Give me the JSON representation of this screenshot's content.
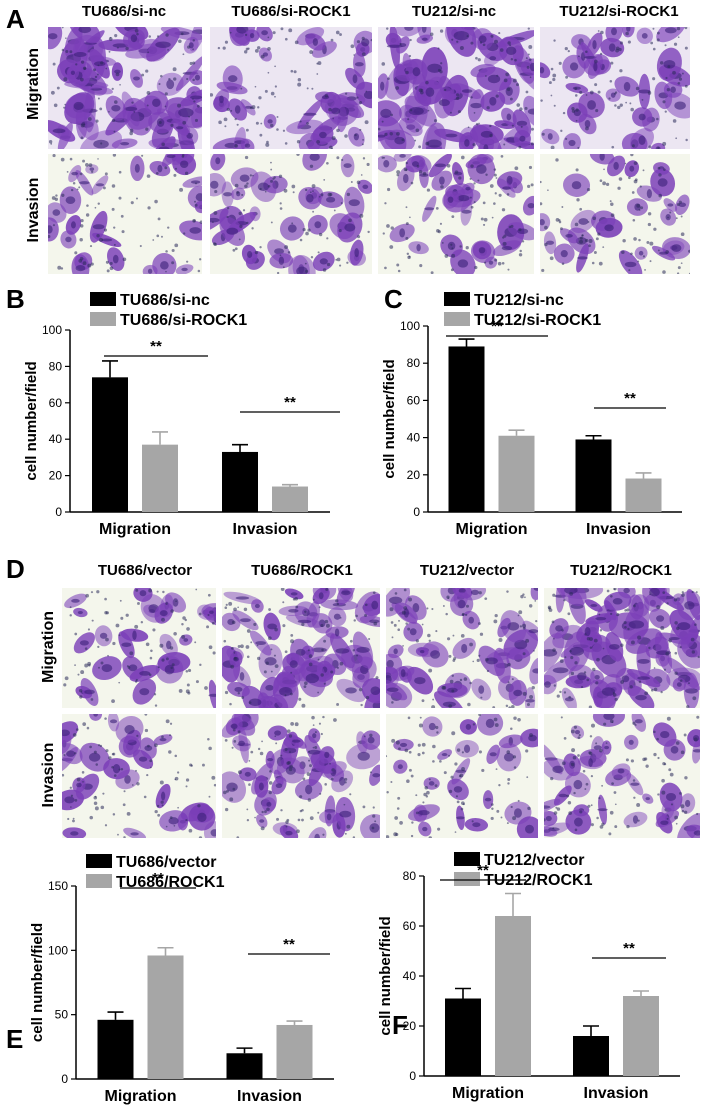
{
  "panels": {
    "A": {
      "letter": "A",
      "columns": [
        "TU686/si-nc",
        "TU686/si-ROCK1",
        "TU212/si-nc",
        "TU212/si-ROCK1"
      ],
      "rows": [
        "Migration",
        "Invasion"
      ],
      "density": [
        [
          1.0,
          0.55,
          1.0,
          0.45
        ],
        [
          0.35,
          0.45,
          0.45,
          0.3
        ]
      ]
    },
    "D": {
      "letter": "D",
      "columns": [
        "TU686/vector",
        "TU686/ROCK1",
        "TU212/vector",
        "TU212/ROCK1"
      ],
      "rows": [
        "Migration",
        "Invasion"
      ],
      "density": [
        [
          0.35,
          0.9,
          0.6,
          1.0
        ],
        [
          0.35,
          0.65,
          0.25,
          0.5
        ]
      ]
    },
    "B": {
      "letter": "B"
    },
    "C": {
      "letter": "C"
    },
    "E": {
      "letter": "E"
    },
    "F": {
      "letter": "F"
    }
  },
  "colors": {
    "stain": "#7b3fb8",
    "stain_dark": "#3a1f78",
    "bar_dark": "#000000",
    "bar_light": "#a6a6a6"
  },
  "chart_data": [
    {
      "id": "B",
      "type": "bar",
      "ylabel": "cell number/field",
      "ylim": [
        0,
        100
      ],
      "yticks": [
        0,
        20,
        40,
        60,
        80,
        100
      ],
      "categories": [
        "Migration",
        "Invasion"
      ],
      "series": [
        {
          "name": "TU686/si-nc",
          "values": [
            74,
            33
          ],
          "errors": [
            9,
            4
          ]
        },
        {
          "name": "TU686/si-ROCK1",
          "values": [
            37,
            14
          ],
          "errors": [
            7,
            1
          ]
        }
      ],
      "significance": [
        "**",
        "**"
      ]
    },
    {
      "id": "C",
      "type": "bar",
      "ylabel": "cell number/field",
      "ylim": [
        0,
        100
      ],
      "yticks": [
        0,
        20,
        40,
        60,
        80,
        100
      ],
      "categories": [
        "Migration",
        "Invasion"
      ],
      "series": [
        {
          "name": "TU212/si-nc",
          "values": [
            89,
            39
          ],
          "errors": [
            4,
            2
          ]
        },
        {
          "name": "TU212/si-ROCK1",
          "values": [
            41,
            18
          ],
          "errors": [
            3,
            3
          ]
        }
      ],
      "significance": [
        "**",
        "**"
      ]
    },
    {
      "id": "E",
      "type": "bar",
      "ylabel": "cell number/field",
      "ylim": [
        0,
        150
      ],
      "yticks": [
        0,
        50,
        100,
        150
      ],
      "categories": [
        "Migration",
        "Invasion"
      ],
      "series": [
        {
          "name": "TU686/vector",
          "values": [
            46,
            20
          ],
          "errors": [
            6,
            4
          ]
        },
        {
          "name": "TU686/ROCK1",
          "values": [
            96,
            42
          ],
          "errors": [
            6,
            3
          ]
        }
      ],
      "significance": [
        "**",
        "**"
      ]
    },
    {
      "id": "F",
      "type": "bar",
      "ylabel": "cell number/field",
      "ylim": [
        0,
        80
      ],
      "yticks": [
        0,
        20,
        40,
        60,
        80
      ],
      "categories": [
        "Migration",
        "Invasion"
      ],
      "series": [
        {
          "name": "TU212/vector",
          "values": [
            31,
            16
          ],
          "errors": [
            4,
            4
          ]
        },
        {
          "name": "TU212/ROCK1",
          "values": [
            64,
            32
          ],
          "errors": [
            9,
            2
          ]
        }
      ],
      "significance": [
        "**",
        "**"
      ]
    }
  ]
}
